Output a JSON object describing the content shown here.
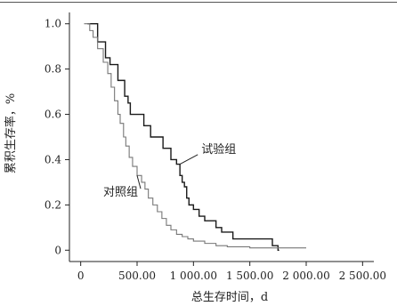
{
  "chart_data": {
    "type": "line",
    "xlabel": "总生存时间，d",
    "ylabel": "累积生存率，%",
    "xlim": [
      -100,
      2600
    ],
    "ylim": [
      -0.05,
      1.05
    ],
    "x_ticks": [
      0,
      500,
      1000,
      1500,
      2000,
      2500
    ],
    "x_tick_labels": [
      "0",
      "500.00",
      "1 000.00",
      "1 500.00",
      "2 000.00",
      "2 500.00"
    ],
    "y_ticks": [
      0,
      0.2,
      0.4,
      0.6,
      0.8,
      1.0
    ],
    "y_tick_labels": [
      "0",
      "0.2",
      "0.4",
      "0.6",
      "0.8",
      "1.0"
    ],
    "grid": false,
    "series": [
      {
        "name": "试验组",
        "color": "#1a1a1a",
        "step": true,
        "x": [
          60,
          150,
          220,
          260,
          330,
          390,
          420,
          440,
          540,
          560,
          620,
          680,
          730,
          800,
          850,
          880,
          900,
          920,
          940,
          960,
          1000,
          1050,
          1100,
          1200,
          1250,
          1300,
          1350,
          1700,
          1750,
          1760
        ],
        "y": [
          1.0,
          0.92,
          0.85,
          0.82,
          0.75,
          0.68,
          0.65,
          0.6,
          0.6,
          0.55,
          0.5,
          0.5,
          0.45,
          0.4,
          0.38,
          0.33,
          0.3,
          0.28,
          0.23,
          0.2,
          0.18,
          0.15,
          0.13,
          0.1,
          0.08,
          0.08,
          0.05,
          0.02,
          0.0,
          0.0
        ]
      },
      {
        "name": "对照组",
        "color": "#777777",
        "step": true,
        "x": [
          30,
          80,
          110,
          150,
          200,
          240,
          270,
          300,
          330,
          350,
          380,
          400,
          430,
          460,
          500,
          540,
          570,
          600,
          640,
          680,
          720,
          760,
          800,
          850,
          900,
          950,
          1000,
          1100,
          1200,
          1300,
          1400,
          1500,
          1600,
          1700,
          1800,
          1900,
          2000
        ],
        "y": [
          1.0,
          0.97,
          0.94,
          0.89,
          0.83,
          0.78,
          0.72,
          0.66,
          0.6,
          0.56,
          0.5,
          0.46,
          0.41,
          0.37,
          0.33,
          0.3,
          0.27,
          0.23,
          0.2,
          0.17,
          0.14,
          0.11,
          0.09,
          0.07,
          0.06,
          0.05,
          0.04,
          0.03,
          0.02,
          0.015,
          0.015,
          0.01,
          0.01,
          0.01,
          0.01,
          0.01,
          0.01
        ]
      }
    ],
    "annotations": [
      {
        "text": "试验组",
        "series": "试验组",
        "point_x": 880,
        "point_y": 0.38,
        "label_x": 1070,
        "label_y": 0.43
      },
      {
        "text": "对照组",
        "series": "对照组",
        "point_x": 500,
        "point_y": 0.33,
        "label_x": 200,
        "label_y": 0.24
      }
    ]
  }
}
